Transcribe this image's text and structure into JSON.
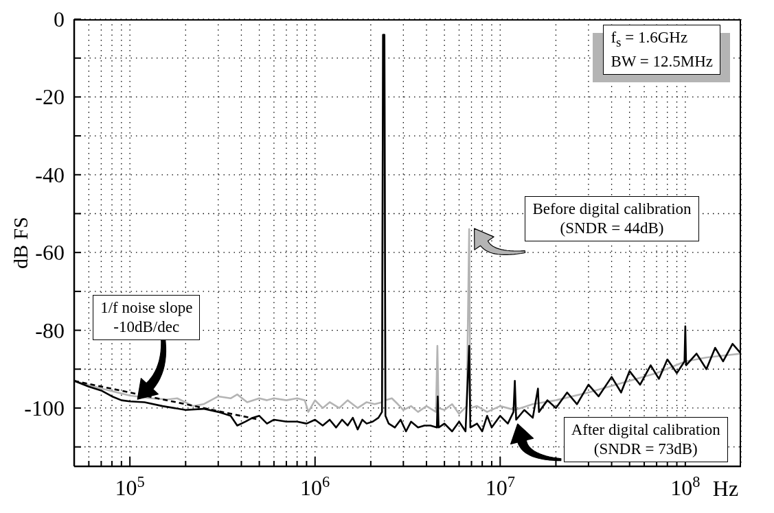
{
  "chart_data": {
    "type": "line",
    "xlabel": "Hz",
    "ylabel": "dB FS",
    "log": "x",
    "grid": true,
    "marker": "none",
    "xlim": [
      50000,
      200000000
    ],
    "ylim": [
      -115,
      0
    ],
    "xticks": [
      {
        "value": 50000,
        "label": null
      },
      {
        "value": 60000,
        "label": null
      },
      {
        "value": 70000,
        "label": null
      },
      {
        "value": 80000,
        "label": null
      },
      {
        "value": 90000,
        "label": null
      },
      {
        "value": 100000,
        "label": "10$^{5}$"
      },
      {
        "value": 200000,
        "label": null
      },
      {
        "value": 300000,
        "label": null
      },
      {
        "value": 400000,
        "label": null
      },
      {
        "value": 500000,
        "label": null
      },
      {
        "value": 600000,
        "label": null
      },
      {
        "value": 700000,
        "label": null
      },
      {
        "value": 800000,
        "label": null
      },
      {
        "value": 900000,
        "label": null
      },
      {
        "value": 1000000,
        "label": "10$^{6}$"
      },
      {
        "value": 2000000,
        "label": null
      },
      {
        "value": 3000000,
        "label": null
      },
      {
        "value": 4000000,
        "label": null
      },
      {
        "value": 5000000,
        "label": null
      },
      {
        "value": 6000000,
        "label": null
      },
      {
        "value": 7000000,
        "label": null
      },
      {
        "value": 8000000,
        "label": null
      },
      {
        "value": 9000000,
        "label": null
      },
      {
        "value": 10000000,
        "label": "10$^{7}$"
      },
      {
        "value": 20000000,
        "label": null
      },
      {
        "value": 30000000,
        "label": null
      },
      {
        "value": 40000000,
        "label": null
      },
      {
        "value": 50000000,
        "label": null
      },
      {
        "value": 60000000,
        "label": null
      },
      {
        "value": 70000000,
        "label": null
      },
      {
        "value": 80000000,
        "label": null
      },
      {
        "value": 90000000,
        "label": null
      },
      {
        "value": 100000000,
        "label": "10$^{8}$"
      }
    ],
    "yticks": [
      0,
      {
        "value": -10,
        "label": null
      },
      -20,
      {
        "value": -30,
        "label": null
      },
      -40,
      {
        "value": -50,
        "label": null
      },
      -60,
      {
        "value": -70,
        "label": null
      },
      -80,
      {
        "value": -90,
        "label": null
      },
      -100,
      {
        "value": -110,
        "label": null
      }
    ],
    "series": [
      {
        "color": "#b4b4b4",
        "x": [
          50000,
          70000,
          100000,
          130000,
          160000,
          180000,
          220000,
          250000,
          300000,
          350000,
          380000,
          430000,
          500000,
          550000,
          600000,
          700000,
          800000,
          880000,
          920000,
          1000000,
          1100000,
          1200000,
          1350000,
          1500000,
          1700000,
          1900000,
          2100000,
          2300000,
          2330000,
          2370000,
          2400000,
          2600000,
          2800000,
          3000000,
          3300000,
          3600000,
          4000000,
          4500000,
          4580000,
          4650000,
          5000000,
          5500000,
          6000000,
          6600000,
          6800000,
          6900000,
          7500000,
          8500000,
          10000000,
          12000000,
          15000000,
          20000000,
          30000000,
          50000000,
          70000000,
          100000000,
          130000000,
          160000000,
          200000000
        ],
        "values": [
          -93,
          -95,
          -96.8,
          -97.5,
          -97.8,
          -97.5,
          -99.5,
          -99,
          -97,
          -97.5,
          -96.5,
          -98.5,
          -97.5,
          -98,
          -97.5,
          -98,
          -97.5,
          -98,
          -101,
          -98,
          -100,
          -98.5,
          -100,
          -98,
          -100,
          -98.5,
          -99,
          -98.5,
          -4,
          -4,
          -98,
          -97.5,
          -99,
          -100.5,
          -99.5,
          -101,
          -99.5,
          -101,
          -84,
          -100,
          -100.5,
          -99,
          -101.5,
          -99.5,
          -54,
          -100,
          -99.5,
          -101,
          -99.5,
          -100.5,
          -99,
          -98,
          -96,
          -93,
          -91,
          -88,
          -87,
          -86.5,
          -86
        ]
      },
      {
        "color": "#000000",
        "x": [
          50000,
          60000,
          70000,
          80000,
          90000,
          100000,
          120000,
          150000,
          200000,
          250000,
          300000,
          350000,
          380000,
          420000,
          460000,
          500000,
          550000,
          600000,
          700000,
          800000,
          900000,
          1000000,
          1100000,
          1200000,
          1300000,
          1400000,
          1500000,
          1600000,
          1700000,
          1800000,
          1900000,
          2050000,
          2200000,
          2300000,
          2330000,
          2370000,
          2400000,
          2500000,
          2700000,
          2900000,
          3100000,
          3300000,
          3600000,
          3900000,
          4200000,
          4550000,
          4600000,
          4650000,
          5000000,
          5500000,
          6000000,
          6500000,
          6800000,
          6900000,
          7500000,
          8000000,
          8500000,
          9000000,
          10000000,
          11000000,
          11800000,
          12000000,
          12200000,
          13500000,
          15000000,
          16000000,
          16200000,
          18000000,
          20000000,
          23000000,
          26000000,
          30000000,
          34000000,
          40000000,
          45000000,
          50000000,
          57000000,
          65000000,
          72000000,
          80000000,
          90000000,
          99000000,
          100000000,
          101000000,
          115000000,
          130000000,
          145000000,
          160000000,
          180000000,
          200000000
        ],
        "values": [
          -93,
          -94.5,
          -95.5,
          -97,
          -98,
          -98.3,
          -98.5,
          -99.5,
          -100.5,
          -100.2,
          -101,
          -102,
          -104.5,
          -103.5,
          -102.5,
          -102,
          -104,
          -103,
          -103.5,
          -103.5,
          -104,
          -103,
          -104.5,
          -103,
          -105,
          -103,
          -104.5,
          -102.5,
          -105.5,
          -103,
          -104,
          -103.5,
          -102.5,
          -101,
          -4,
          -4,
          -102,
          -104,
          -105,
          -103,
          -106,
          -103.5,
          -105,
          -104.5,
          -104.5,
          -105,
          -97,
          -105,
          -104,
          -106,
          -103.5,
          -106,
          -84,
          -105,
          -104,
          -106,
          -102,
          -105,
          -102,
          -104,
          -101,
          -93,
          -103,
          -100.5,
          -102.5,
          -95,
          -101,
          -98,
          -100,
          -96,
          -99,
          -94,
          -97,
          -92,
          -96,
          -90.5,
          -94,
          -89,
          -92.5,
          -87.5,
          -91,
          -88,
          -79,
          -89,
          -86,
          -90,
          -84.5,
          -88,
          -83.5,
          -86
        ]
      },
      {
        "color": "#000000",
        "line_style": "dashed",
        "x": [
          50000,
          500000
        ],
        "values": [
          -93,
          -103
        ]
      }
    ],
    "annotations": [
      "1/f noise slope\n-10dB/dec",
      "Before digital calibration\n(SNDR = 44dB)",
      "After digital calibration\n(SNDR = 73dB)",
      "f$_{s}$ = 1.6GHz\nBW = 12.5MHz"
    ]
  }
}
